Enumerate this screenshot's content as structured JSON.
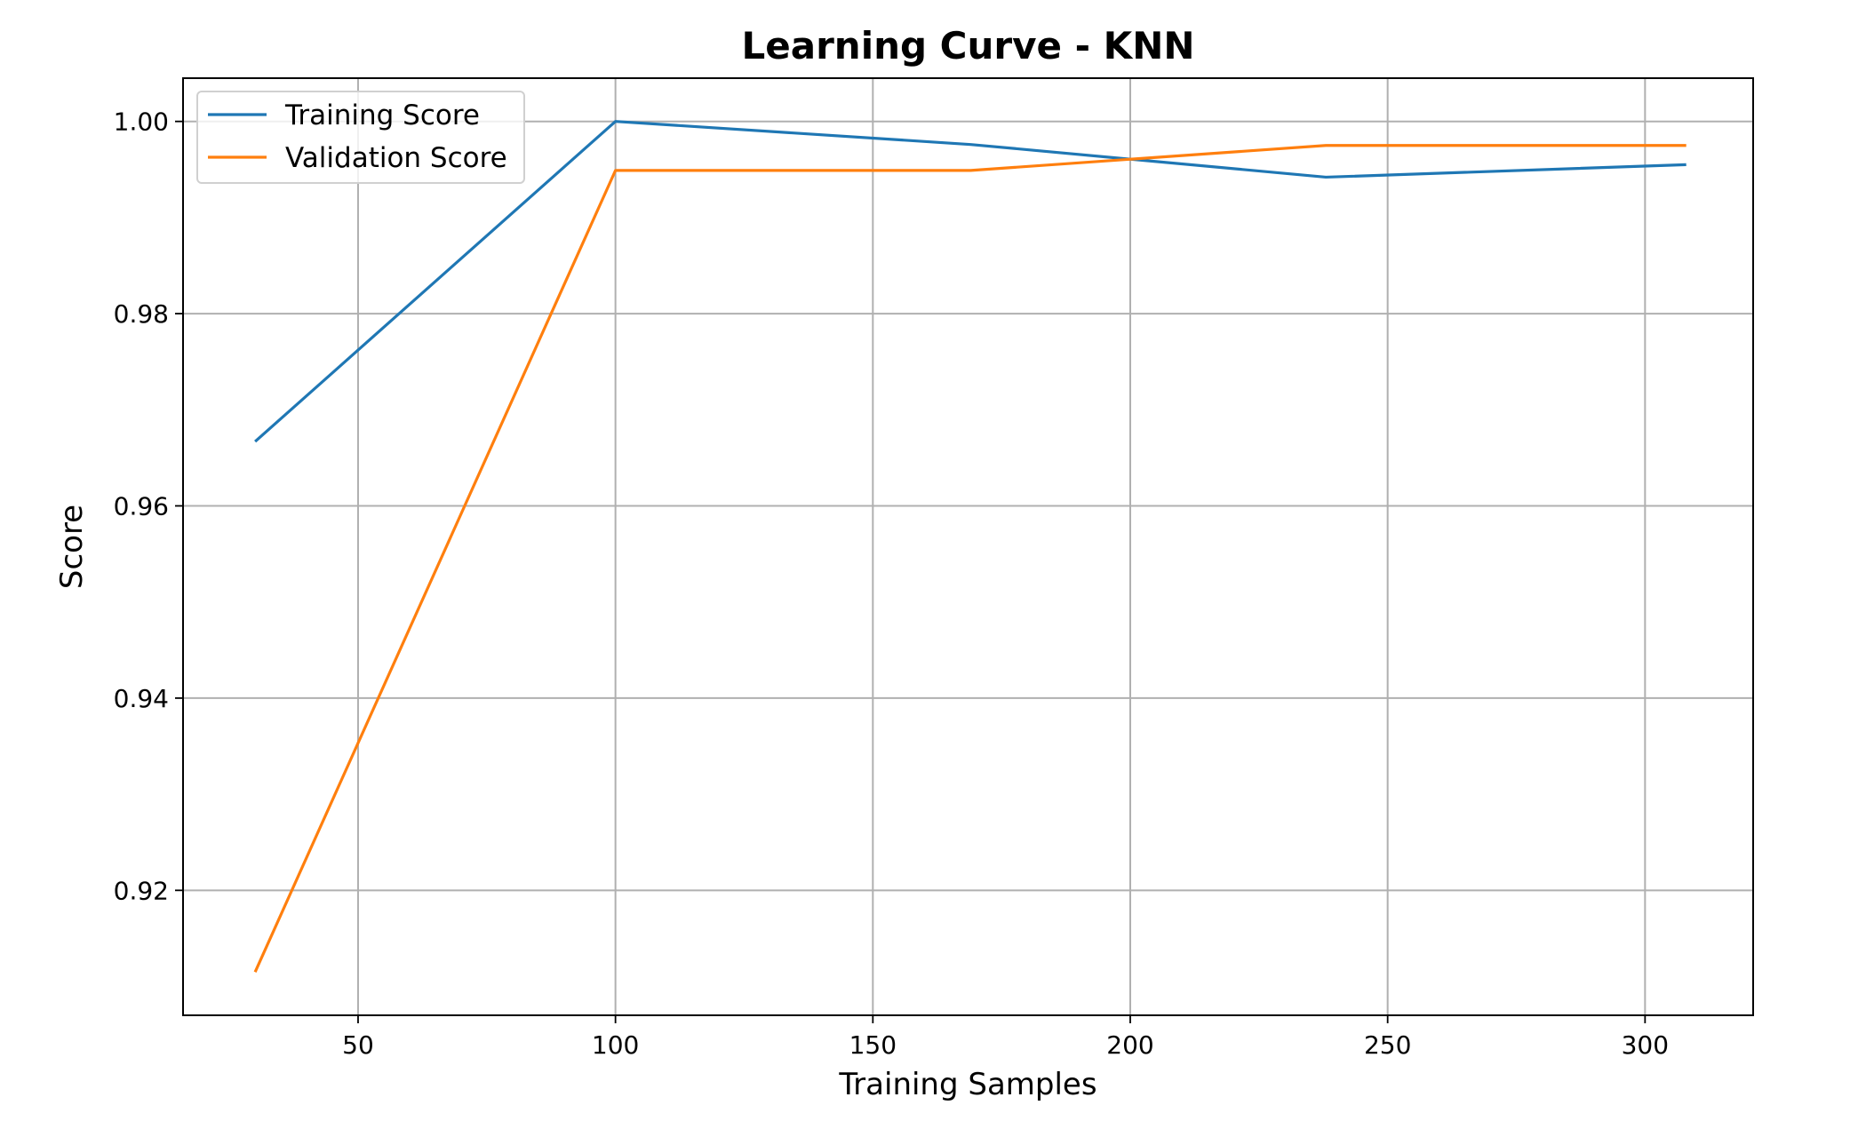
{
  "chart_data": {
    "type": "line",
    "title": "Learning Curve - KNN",
    "xlabel": "Training Samples",
    "ylabel": "Score",
    "xlim": [
      16,
      321
    ],
    "ylim": [
      0.907,
      1.0045
    ],
    "xticks": [
      50,
      100,
      150,
      200,
      250,
      300
    ],
    "xtick_labels": [
      "50",
      "100",
      "150",
      "200",
      "250",
      "300"
    ],
    "yticks": [
      0.92,
      0.94,
      0.96,
      0.98,
      1.0
    ],
    "ytick_labels": [
      "0.92",
      "0.94",
      "0.96",
      "0.98",
      "1.00"
    ],
    "grid": true,
    "legend_position": "upper-left",
    "x": [
      30,
      100,
      169,
      238,
      308
    ],
    "series": [
      {
        "name": "Training Score",
        "color": "#1f77b4",
        "values": [
          0.9667,
          1.0,
          0.9976,
          0.9942,
          0.9955
        ]
      },
      {
        "name": "Validation Score",
        "color": "#ff7f0e",
        "values": [
          0.9115,
          0.9949,
          0.9949,
          0.9975,
          0.9975
        ]
      }
    ]
  }
}
